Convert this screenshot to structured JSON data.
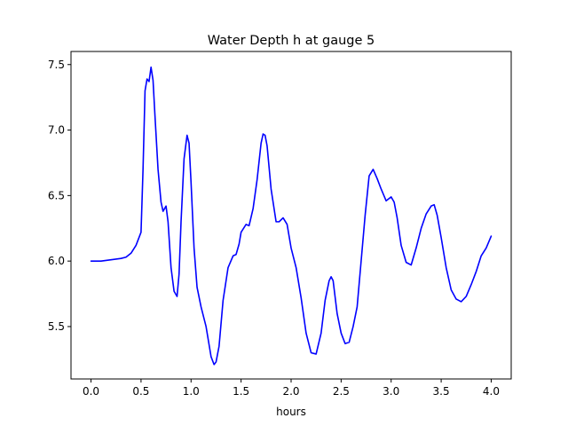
{
  "chart_data": {
    "type": "line",
    "title": "Water Depth h at gauge 5",
    "xlabel": "hours",
    "ylabel": "",
    "xlim": [
      -0.2,
      4.2
    ],
    "ylim": [
      5.1,
      7.6
    ],
    "xticks": [
      0.0,
      0.5,
      1.0,
      1.5,
      2.0,
      2.5,
      3.0,
      3.5,
      4.0
    ],
    "xtick_labels": [
      "0.0",
      "0.5",
      "1.0",
      "1.5",
      "2.0",
      "2.5",
      "3.0",
      "3.5",
      "4.0"
    ],
    "yticks": [
      5.5,
      6.0,
      6.5,
      7.0,
      7.5
    ],
    "ytick_labels": [
      "5.5",
      "6.0",
      "6.5",
      "7.0",
      "7.5"
    ],
    "grid": false,
    "legend": "none",
    "series": [
      {
        "color": "#0000ff",
        "x": [
          0.0,
          0.1,
          0.2,
          0.3,
          0.35,
          0.4,
          0.45,
          0.5,
          0.52,
          0.54,
          0.56,
          0.58,
          0.6,
          0.62,
          0.64,
          0.67,
          0.7,
          0.72,
          0.75,
          0.77,
          0.8,
          0.83,
          0.86,
          0.88,
          0.9,
          0.93,
          0.96,
          0.98,
          1.0,
          1.03,
          1.06,
          1.1,
          1.15,
          1.2,
          1.23,
          1.25,
          1.28,
          1.32,
          1.37,
          1.42,
          1.45,
          1.48,
          1.5,
          1.55,
          1.58,
          1.62,
          1.66,
          1.7,
          1.72,
          1.74,
          1.76,
          1.8,
          1.85,
          1.88,
          1.92,
          1.96,
          2.0,
          2.05,
          2.1,
          2.15,
          2.2,
          2.25,
          2.3,
          2.34,
          2.38,
          2.4,
          2.42,
          2.46,
          2.5,
          2.54,
          2.58,
          2.62,
          2.66,
          2.7,
          2.74,
          2.78,
          2.82,
          2.86,
          2.9,
          2.95,
          3.0,
          3.03,
          3.06,
          3.1,
          3.15,
          3.2,
          3.25,
          3.3,
          3.35,
          3.4,
          3.43,
          3.46,
          3.5,
          3.55,
          3.6,
          3.65,
          3.7,
          3.75,
          3.8,
          3.85,
          3.9,
          3.95,
          4.0
        ],
        "y": [
          6.0,
          6.0,
          6.01,
          6.02,
          6.03,
          6.06,
          6.12,
          6.22,
          6.7,
          7.3,
          7.39,
          7.37,
          7.48,
          7.38,
          7.1,
          6.7,
          6.45,
          6.38,
          6.42,
          6.3,
          5.95,
          5.77,
          5.73,
          5.9,
          6.3,
          6.78,
          6.96,
          6.9,
          6.6,
          6.1,
          5.8,
          5.65,
          5.5,
          5.27,
          5.21,
          5.23,
          5.35,
          5.7,
          5.95,
          6.04,
          6.05,
          6.13,
          6.22,
          6.28,
          6.27,
          6.4,
          6.62,
          6.9,
          6.97,
          6.96,
          6.88,
          6.55,
          6.3,
          6.3,
          6.33,
          6.28,
          6.1,
          5.95,
          5.72,
          5.45,
          5.3,
          5.29,
          5.45,
          5.7,
          5.85,
          5.88,
          5.85,
          5.6,
          5.45,
          5.37,
          5.38,
          5.5,
          5.65,
          6.0,
          6.35,
          6.65,
          6.7,
          6.63,
          6.55,
          6.46,
          6.49,
          6.45,
          6.33,
          6.12,
          5.99,
          5.97,
          6.1,
          6.25,
          6.36,
          6.42,
          6.43,
          6.35,
          6.18,
          5.95,
          5.78,
          5.71,
          5.69,
          5.73,
          5.82,
          5.92,
          6.04,
          6.1,
          6.19
        ]
      }
    ]
  }
}
